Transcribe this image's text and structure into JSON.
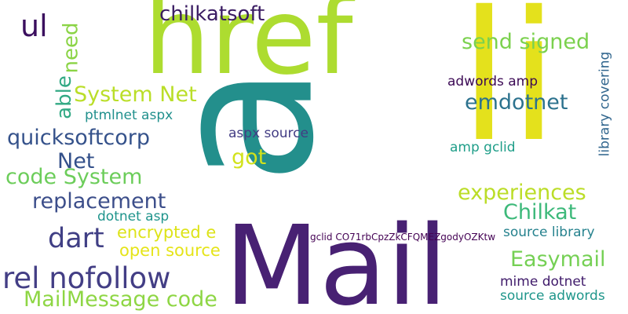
{
  "words": [
    {
      "text": "Mail",
      "color": "#482173"
    },
    {
      "text": "href",
      "color": "#addc30"
    },
    {
      "text": "li",
      "color": "#e4e11c"
    },
    {
      "text": "a",
      "color": "#238f8c"
    },
    {
      "text": "chilkatsoft",
      "color": "#3b1d63"
    },
    {
      "text": "ul",
      "color": "#3b0f5e"
    },
    {
      "text": "need",
      "color": "#8bd446"
    },
    {
      "text": "able",
      "color": "#32a984"
    },
    {
      "text": "send signed",
      "color": "#7bd14e"
    },
    {
      "text": "System Net",
      "color": "#bade28"
    },
    {
      "text": "emdotnet",
      "color": "#2c728e"
    },
    {
      "text": "adwords amp",
      "color": "#3c0a55"
    },
    {
      "text": "ptmlnet aspx",
      "color": "#21908d"
    },
    {
      "text": "library covering",
      "color": "#31668e"
    },
    {
      "text": "quicksoftcorp",
      "color": "#35528b"
    },
    {
      "text": "aspx source",
      "color": "#433d84"
    },
    {
      "text": "Net",
      "color": "#33508a"
    },
    {
      "text": "got",
      "color": "#d2e21b"
    },
    {
      "text": "amp gclid",
      "color": "#1f9e89"
    },
    {
      "text": "code System",
      "color": "#6ccd5a"
    },
    {
      "text": "experiences",
      "color": "#bbdd27"
    },
    {
      "text": "replacement",
      "color": "#3c4e8a"
    },
    {
      "text": "Chilkat",
      "color": "#3db97a"
    },
    {
      "text": "dotnet asp",
      "color": "#1f948c"
    },
    {
      "text": "dart",
      "color": "#403f85"
    },
    {
      "text": "encrypted e",
      "color": "#dde318"
    },
    {
      "text": "source library",
      "color": "#26828e"
    },
    {
      "text": "gclid CO71rbCpzZkCFQMEZgodyOZKtw",
      "color": "#440254"
    },
    {
      "text": "open source",
      "color": "#e5e419"
    },
    {
      "text": "rel nofollow",
      "color": "#433e85"
    },
    {
      "text": "Easymail",
      "color": "#75d054"
    },
    {
      "text": "mime dotnet",
      "color": "#3f1a6a"
    },
    {
      "text": "MailMessage code",
      "color": "#8ed644"
    },
    {
      "text": "source adwords",
      "color": "#1f968b"
    }
  ]
}
